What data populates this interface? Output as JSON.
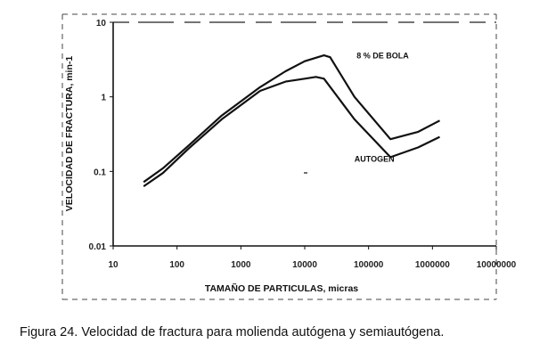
{
  "caption": "Figura  24. Velocidad de fractura para molienda autógena y semiautógena.",
  "chart_data": {
    "type": "line",
    "title": "",
    "xlabel": "TAMAÑO DE PARTICULAS, micras",
    "ylabel": "VELOCIDAD DE FRACTURA, min-1",
    "xscale": "log",
    "yscale": "log",
    "xlim": [
      10,
      10000000
    ],
    "ylim": [
      0.01,
      10
    ],
    "xticks": [
      "10",
      "100",
      "1000",
      "10000",
      "100000",
      "1000000",
      "10000000"
    ],
    "yticks": [
      "0.01",
      "0.1",
      "1",
      "10"
    ],
    "grid": false,
    "legend": "none",
    "series": [
      {
        "name": "8 % DE BOLA",
        "x": [
          30,
          60,
          150,
          500,
          2000,
          5000,
          10000,
          20000,
          25000,
          60000,
          220000,
          600000,
          1300000
        ],
        "y": [
          0.072,
          0.11,
          0.22,
          0.56,
          1.35,
          2.2,
          3.0,
          3.6,
          3.4,
          1.0,
          0.27,
          0.34,
          0.48
        ]
      },
      {
        "name": "AUTOGEN",
        "x": [
          30,
          60,
          150,
          500,
          2000,
          5000,
          10000,
          15000,
          20000,
          60000,
          220000,
          600000,
          1300000
        ],
        "y": [
          0.063,
          0.095,
          0.2,
          0.5,
          1.2,
          1.6,
          1.75,
          1.85,
          1.75,
          0.5,
          0.155,
          0.21,
          0.29
        ]
      }
    ],
    "annotations": [
      {
        "text": "8 % DE BOLA",
        "x": 65000,
        "y": 3.3
      },
      {
        "text": "AUTOGEN",
        "x": 60000,
        "y": 0.135
      }
    ]
  }
}
